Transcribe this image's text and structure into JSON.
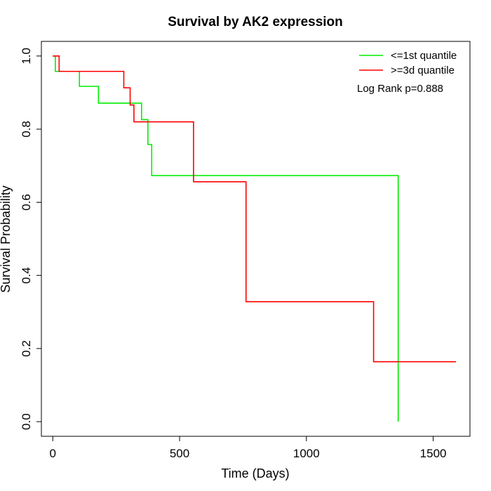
{
  "chart_data": {
    "type": "line",
    "title": "Survival by AK2 expression",
    "xlabel": "Time (Days)",
    "ylabel": "Survival Probability",
    "xlim": [
      -45,
      1645
    ],
    "ylim": [
      -0.04,
      1.04
    ],
    "x_ticks": [
      0,
      500,
      1000,
      1500
    ],
    "y_ticks": [
      0.0,
      0.2,
      0.4,
      0.6,
      0.8,
      1.0
    ],
    "x_tick_labels": [
      "0",
      "500",
      "1000",
      "1500"
    ],
    "y_tick_labels": [
      "0.0",
      "0.2",
      "0.4",
      "0.6",
      "0.8",
      "1.0"
    ],
    "grid": false,
    "legend_position": "top-right",
    "annotation": "Log Rank p=0.888",
    "series": [
      {
        "name": "<=1st quantile",
        "color": "#00ee00",
        "steps": [
          [
            0,
            1.0
          ],
          [
            10,
            0.958
          ],
          [
            105,
            0.917
          ],
          [
            180,
            0.871
          ],
          [
            350,
            0.826
          ],
          [
            375,
            0.758
          ],
          [
            390,
            0.673
          ],
          [
            1362,
            0.0
          ]
        ],
        "end_x": 1362
      },
      {
        "name": ">=3d quantile",
        "color": "#ff0000",
        "steps": [
          [
            0,
            1.0
          ],
          [
            25,
            0.958
          ],
          [
            280,
            0.913
          ],
          [
            305,
            0.866
          ],
          [
            320,
            0.82
          ],
          [
            555,
            0.656
          ],
          [
            762,
            0.328
          ],
          [
            1265,
            0.164
          ]
        ],
        "end_x": 1590
      }
    ]
  }
}
